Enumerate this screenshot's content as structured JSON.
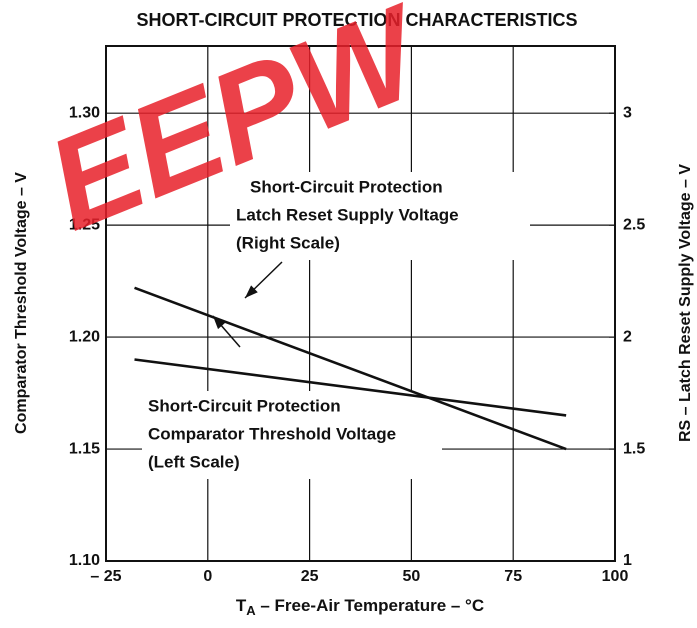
{
  "chart_data": {
    "type": "line",
    "title": "SHORT-CIRCUIT PROTECTION CHARACTERISTICS",
    "watermark": "EEPW",
    "xlabel_symbol": "T",
    "xlabel_subscript": "A",
    "xlabel": " – Free-Air Temperature – °C",
    "ylabel": "Comparator Threshold Voltage – V",
    "y2label": "RS – Latch Reset Supply Voltage – V",
    "x": [
      -18,
      88
    ],
    "series": [
      {
        "name": "Short-Circuit Protection Comparator Threshold Voltage",
        "color": "#111111",
        "values": [
          1.19,
          1.165
        ]
      },
      {
        "name": "Short-Circuit Protection Latch Reset Supply Voltage",
        "color": "#111111",
        "values": [
          2.22,
          1.5
        ],
        "axis": "y2"
      }
    ],
    "annotations": [
      {
        "lines": [
          "Short-Circuit Protection",
          "Latch Reset Supply Voltage",
          "(Right Scale)"
        ]
      },
      {
        "lines": [
          "Short-Circuit Protection",
          "Comparator Threshold Voltage",
          "(Left Scale)"
        ]
      }
    ],
    "xlim": [
      -25,
      100
    ],
    "xticks": [
      {
        "value": -25,
        "label": "– 25"
      },
      0,
      25,
      50,
      75,
      100
    ],
    "ylim": [
      1.1,
      1.33
    ],
    "yticks": [
      {
        "value": 1.1,
        "label": "1.10"
      },
      {
        "value": 1.15,
        "label": "1.15"
      },
      {
        "value": 1.2,
        "label": "1.20"
      },
      {
        "value": 1.25,
        "label": "1.25"
      },
      {
        "value": 1.3,
        "label": "1.30"
      }
    ],
    "y2lim": [
      1,
      3.3
    ],
    "y2ticks": [
      1,
      1.5,
      2,
      2.5,
      3
    ],
    "grid": true
  }
}
